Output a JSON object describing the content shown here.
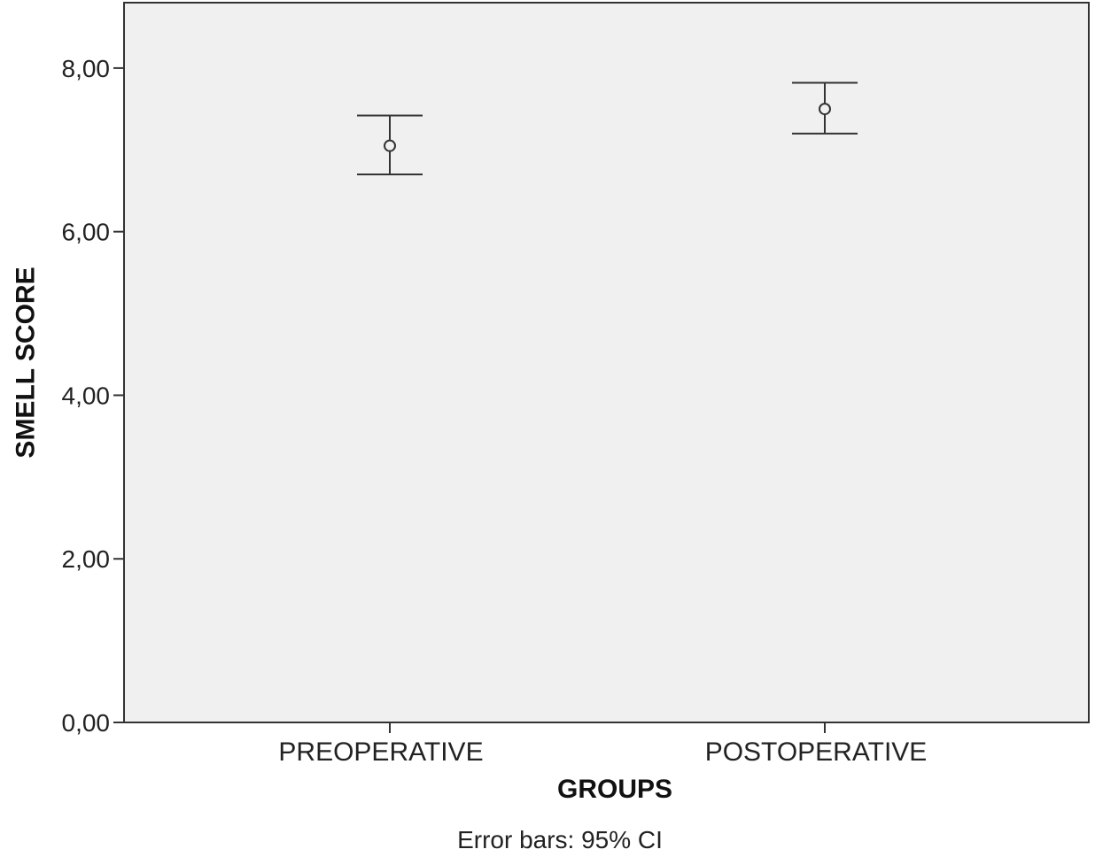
{
  "chart_data": {
    "type": "errorbar",
    "title": "",
    "xlabel": "GROUPS",
    "ylabel": "SMELL SCORE",
    "footnote": "Error bars: 95% CI",
    "ylim": [
      0,
      8.8
    ],
    "yticks": [
      0,
      2,
      4,
      6,
      8
    ],
    "ytick_labels": [
      "0,00",
      "2,00",
      "4,00",
      "6,00",
      "8,00"
    ],
    "categories": [
      "PREOPERATIVE",
      "POSTOPERATIVE"
    ],
    "mean": [
      7.05,
      7.5
    ],
    "ci_lower": [
      6.7,
      7.2
    ],
    "ci_upper": [
      7.42,
      7.82
    ],
    "grid": false,
    "colors": {
      "plot_background": "#f0f0f0",
      "axis": "#333333",
      "marker": "#333333"
    }
  }
}
